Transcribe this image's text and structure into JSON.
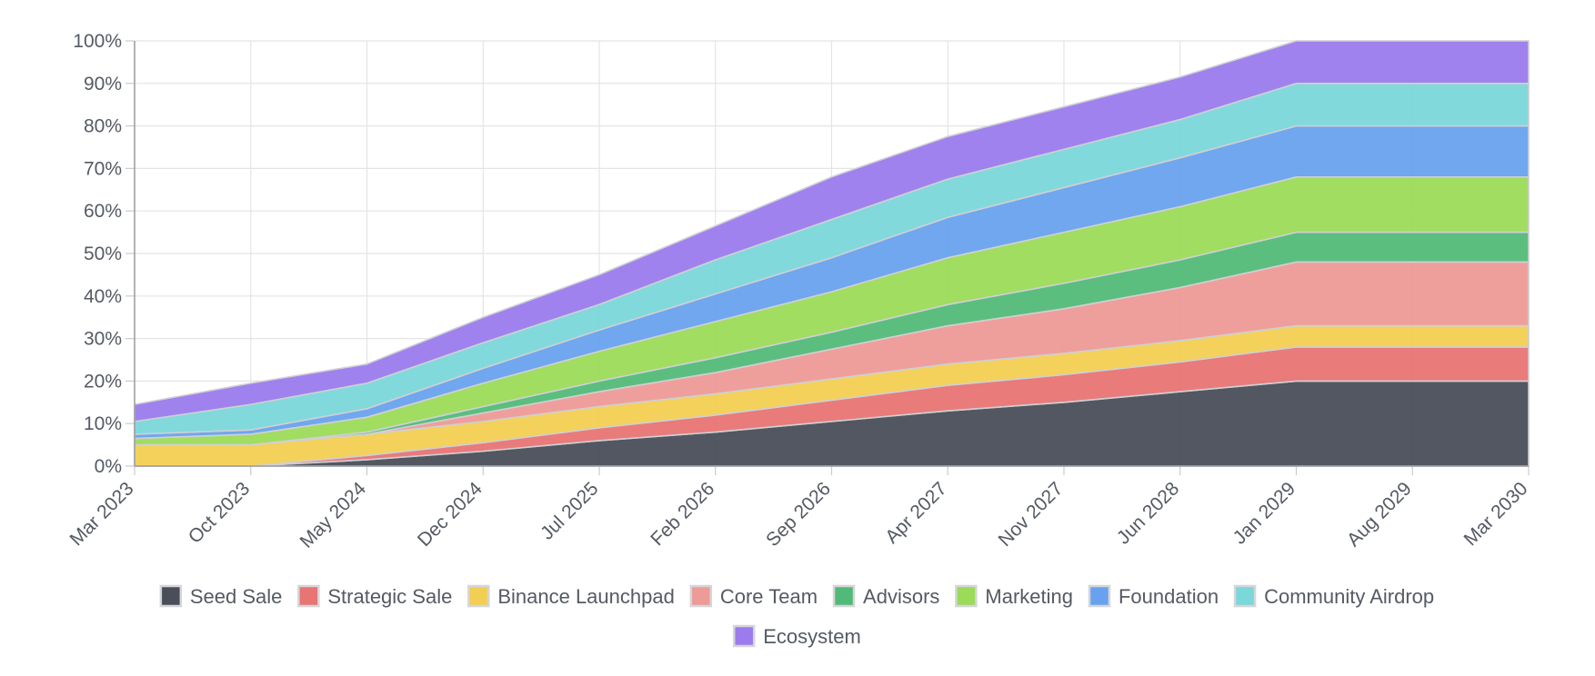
{
  "chart_data": {
    "type": "area",
    "stacked": true,
    "x": [
      "Mar 2023",
      "Oct 2023",
      "May 2024",
      "Dec 2024",
      "Jul 2025",
      "Feb 2026",
      "Sep 2026",
      "Apr 2027",
      "Nov 2027",
      "Jun 2028",
      "Jan 2029",
      "Aug 2029",
      "Mar 2030"
    ],
    "ylim": [
      0,
      100
    ],
    "yticks": [
      "0%",
      "10%",
      "20%",
      "30%",
      "40%",
      "50%",
      "60%",
      "70%",
      "80%",
      "90%",
      "100%"
    ],
    "grid": true,
    "legend_position": "bottom",
    "series": [
      {
        "name": "Seed Sale",
        "color": "#4a4e58",
        "values": [
          0,
          0,
          1.5,
          3.5,
          6,
          8,
          10.5,
          13,
          15,
          17.5,
          20,
          20,
          20
        ]
      },
      {
        "name": "Strategic Sale",
        "color": "#e87474",
        "values": [
          0,
          0,
          1,
          2,
          3,
          4,
          5,
          6,
          6.5,
          7,
          8,
          8,
          8
        ]
      },
      {
        "name": "Binance Launchpad",
        "color": "#f2cf52",
        "values": [
          5,
          5,
          5,
          5,
          5,
          5,
          5,
          5,
          5,
          5,
          5,
          5,
          5
        ]
      },
      {
        "name": "Core Team",
        "color": "#ee9a96",
        "values": [
          0,
          0,
          0,
          2,
          3.5,
          5,
          7,
          9,
          10.5,
          12.5,
          15,
          15,
          15
        ]
      },
      {
        "name": "Advisors",
        "color": "#52ba78",
        "values": [
          0,
          0,
          0.5,
          1.5,
          2.5,
          3.5,
          4,
          5,
          6,
          6.5,
          7,
          7,
          7
        ]
      },
      {
        "name": "Marketing",
        "color": "#9bdb58",
        "values": [
          1.5,
          2.5,
          3.5,
          5.5,
          7,
          8.5,
          9.5,
          11,
          12,
          12.5,
          13,
          13,
          13
        ]
      },
      {
        "name": "Foundation",
        "color": "#68a2ee",
        "values": [
          1,
          1,
          2,
          3.5,
          5,
          6.5,
          8,
          9.5,
          10.5,
          11.5,
          12,
          12,
          12
        ]
      },
      {
        "name": "Community Airdrop",
        "color": "#7ad7da",
        "values": [
          3,
          6,
          6,
          6,
          6,
          8,
          9,
          9,
          9,
          9,
          10,
          10,
          10
        ]
      },
      {
        "name": "Ecosystem",
        "color": "#9b7bee",
        "values": [
          4,
          5,
          4.5,
          6,
          7,
          8,
          10,
          10,
          10,
          10,
          10,
          10,
          10
        ]
      }
    ]
  }
}
